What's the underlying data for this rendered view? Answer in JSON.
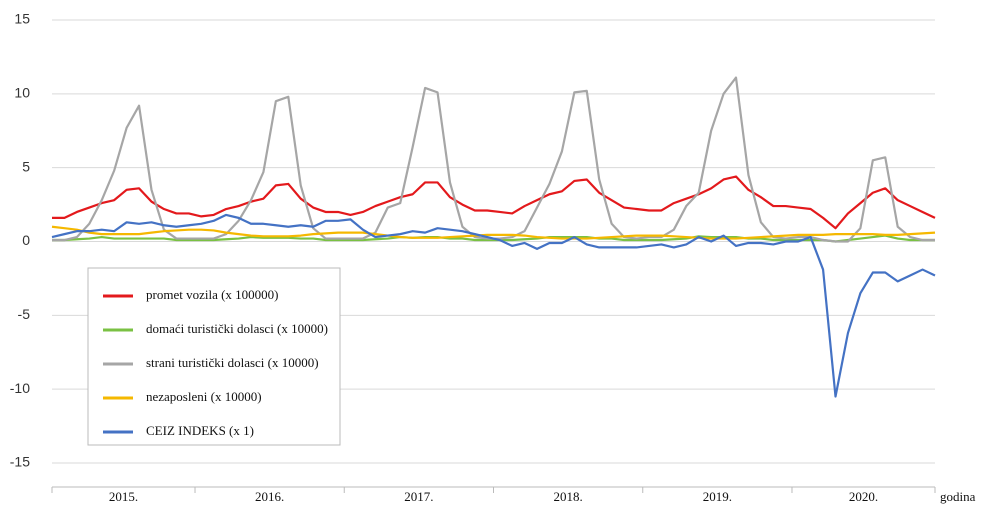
{
  "chart_data": {
    "type": "line",
    "categories": [
      "2015.",
      null,
      null,
      null,
      null,
      null,
      null,
      null,
      null,
      null,
      null,
      null,
      "2016.",
      null,
      null,
      null,
      null,
      null,
      null,
      null,
      null,
      null,
      null,
      null,
      "2017.",
      null,
      null,
      null,
      null,
      null,
      null,
      null,
      null,
      null,
      null,
      null,
      "2018.",
      null,
      null,
      null,
      null,
      null,
      null,
      null,
      null,
      null,
      null,
      null,
      "2019.",
      null,
      null,
      null,
      null,
      null,
      null,
      null,
      null,
      null,
      null,
      null,
      "2020.",
      null,
      null,
      null,
      null,
      null,
      null,
      null,
      null,
      null,
      null,
      null
    ],
    "x_label": "godina",
    "ylim": [
      -15,
      15
    ],
    "yticks": [
      15,
      10,
      5,
      0,
      -5,
      -10,
      -15
    ],
    "grid": true,
    "series": [
      {
        "name": "promet vozila (x 100000)",
        "color": "#e3191c",
        "values": [
          1.6,
          1.6,
          2.0,
          2.3,
          2.6,
          2.8,
          3.5,
          3.6,
          2.7,
          2.2,
          1.9,
          1.9,
          1.7,
          1.8,
          2.2,
          2.4,
          2.7,
          2.9,
          3.8,
          3.9,
          2.9,
          2.3,
          2.0,
          2.0,
          1.8,
          2.0,
          2.4,
          2.7,
          3.0,
          3.2,
          4.0,
          4.0,
          3.0,
          2.5,
          2.1,
          2.1,
          2.0,
          1.9,
          2.4,
          2.8,
          3.2,
          3.4,
          4.1,
          4.2,
          3.3,
          2.8,
          2.3,
          2.2,
          2.1,
          2.1,
          2.6,
          2.9,
          3.2,
          3.6,
          4.2,
          4.4,
          3.5,
          3.0,
          2.4,
          2.4,
          2.3,
          2.2,
          1.6,
          0.9,
          1.9,
          2.6,
          3.3,
          3.6,
          2.8,
          2.4,
          2.0,
          1.6
        ]
      },
      {
        "name": "domaći turistički dolasci (x 10000)",
        "color": "#7ac143",
        "values": [
          0.1,
          0.1,
          0.15,
          0.2,
          0.3,
          0.2,
          0.2,
          0.2,
          0.2,
          0.2,
          0.1,
          0.1,
          0.1,
          0.1,
          0.15,
          0.2,
          0.3,
          0.25,
          0.25,
          0.25,
          0.2,
          0.2,
          0.1,
          0.1,
          0.1,
          0.1,
          0.15,
          0.2,
          0.3,
          0.25,
          0.3,
          0.3,
          0.2,
          0.2,
          0.1,
          0.1,
          0.1,
          0.1,
          0.15,
          0.2,
          0.3,
          0.3,
          0.3,
          0.3,
          0.2,
          0.2,
          0.1,
          0.1,
          0.1,
          0.1,
          0.15,
          0.2,
          0.35,
          0.3,
          0.3,
          0.3,
          0.2,
          0.2,
          0.1,
          0.1,
          0.1,
          0.1,
          0.1,
          0.0,
          0.1,
          0.2,
          0.3,
          0.4,
          0.2,
          0.1,
          0.1,
          0.1
        ]
      },
      {
        "name": "strani turistički dolasci (x 10000)",
        "color": "#a6a6a6",
        "values": [
          0.1,
          0.1,
          0.3,
          1.2,
          2.8,
          4.8,
          7.7,
          9.2,
          3.5,
          0.8,
          0.2,
          0.2,
          0.2,
          0.2,
          0.5,
          1.4,
          2.8,
          4.7,
          9.5,
          9.8,
          3.8,
          0.9,
          0.2,
          0.2,
          0.2,
          0.2,
          0.6,
          2.3,
          2.6,
          6.4,
          10.4,
          10.1,
          4.0,
          1.0,
          0.3,
          0.2,
          0.2,
          0.3,
          0.7,
          2.3,
          3.9,
          6.1,
          10.1,
          10.2,
          4.2,
          1.2,
          0.3,
          0.2,
          0.3,
          0.3,
          0.8,
          2.4,
          3.3,
          7.5,
          10.0,
          11.1,
          4.5,
          1.3,
          0.3,
          0.2,
          0.3,
          0.3,
          0.1,
          0.0,
          0.0,
          0.9,
          5.5,
          5.7,
          1.0,
          0.3,
          0.1,
          0.1
        ]
      },
      {
        "name": "nezaposleni (x 10000)",
        "color": "#f5b800",
        "values": [
          1.0,
          0.9,
          0.8,
          0.6,
          0.5,
          0.5,
          0.5,
          0.5,
          0.6,
          0.7,
          0.75,
          0.8,
          0.8,
          0.75,
          0.6,
          0.5,
          0.4,
          0.35,
          0.35,
          0.35,
          0.4,
          0.5,
          0.55,
          0.6,
          0.6,
          0.6,
          0.5,
          0.4,
          0.3,
          0.25,
          0.25,
          0.25,
          0.3,
          0.35,
          0.4,
          0.45,
          0.45,
          0.45,
          0.4,
          0.3,
          0.25,
          0.2,
          0.2,
          0.2,
          0.25,
          0.3,
          0.35,
          0.4,
          0.4,
          0.4,
          0.35,
          0.3,
          0.25,
          0.2,
          0.2,
          0.2,
          0.25,
          0.3,
          0.35,
          0.4,
          0.45,
          0.45,
          0.45,
          0.5,
          0.5,
          0.5,
          0.5,
          0.45,
          0.45,
          0.5,
          0.55,
          0.6
        ]
      },
      {
        "name": "CEIZ INDEKS (x 1)",
        "color": "#4472c4",
        "values": [
          0.3,
          0.5,
          0.7,
          0.7,
          0.8,
          0.7,
          1.3,
          1.2,
          1.3,
          1.1,
          1.0,
          1.1,
          1.2,
          1.4,
          1.8,
          1.6,
          1.2,
          1.2,
          1.1,
          1.0,
          1.1,
          1.0,
          1.4,
          1.4,
          1.5,
          0.8,
          0.3,
          0.4,
          0.5,
          0.7,
          0.6,
          0.9,
          0.8,
          0.7,
          0.5,
          0.3,
          0.1,
          -0.3,
          -0.1,
          -0.5,
          -0.1,
          -0.1,
          0.3,
          -0.2,
          -0.4,
          -0.4,
          -0.4,
          -0.4,
          -0.3,
          -0.2,
          -0.4,
          -0.2,
          0.3,
          0.0,
          0.4,
          -0.3,
          -0.1,
          -0.1,
          -0.2,
          0.0,
          0.0,
          0.3,
          -1.9,
          -10.5,
          -6.2,
          -3.5,
          -2.1,
          -2.1,
          -2.7,
          -2.3,
          -1.9,
          -2.3
        ]
      }
    ]
  }
}
